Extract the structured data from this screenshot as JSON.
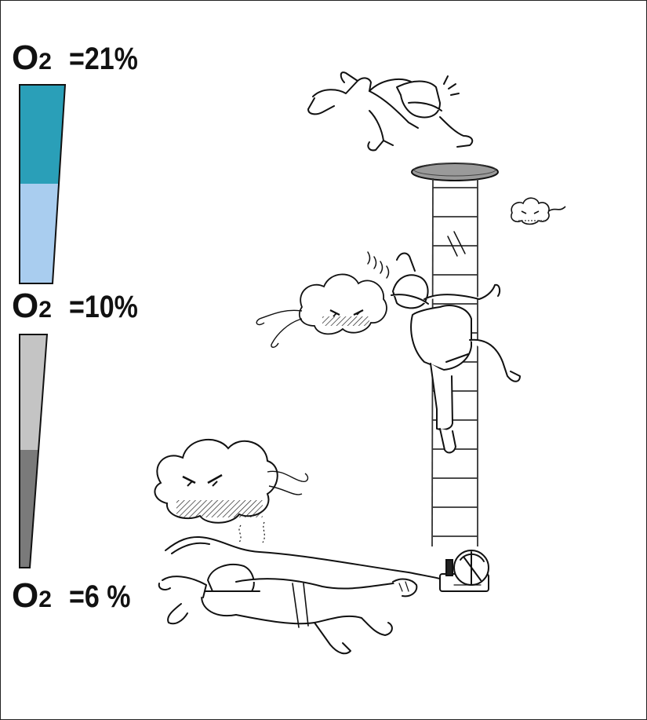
{
  "levels": [
    {
      "symbol": "O",
      "subscript": "2",
      "value": "=21%"
    },
    {
      "symbol": "O",
      "subscript": "2",
      "value": "=10%"
    },
    {
      "symbol": "O",
      "subscript": "2",
      "value": "=6 %"
    }
  ],
  "bars": [
    {
      "name": "oxygen-high-bar",
      "fill_fraction": 0.5,
      "colors": [
        "#2a9fb8",
        "#a9cdef"
      ]
    },
    {
      "name": "oxygen-low-bar",
      "fill_fraction": 0.5,
      "colors": [
        "#c4c4c4",
        "#7a7a7a"
      ]
    }
  ],
  "colors": {
    "teal": "#2a9fb8",
    "light_blue": "#a9cdef",
    "light_gray": "#c4c4c4",
    "dark_gray": "#7a7a7a",
    "outline": "#111111"
  },
  "illustrations": [
    "collapsed-worker-at-surface",
    "manhole-cover",
    "ladder",
    "worker-falling-from-ladder",
    "small-gas-cloud-icon",
    "medium-gas-cloud-icon",
    "large-gas-cloud-icon",
    "unconscious-worker-on-floor",
    "air-hose-and-blower"
  ]
}
